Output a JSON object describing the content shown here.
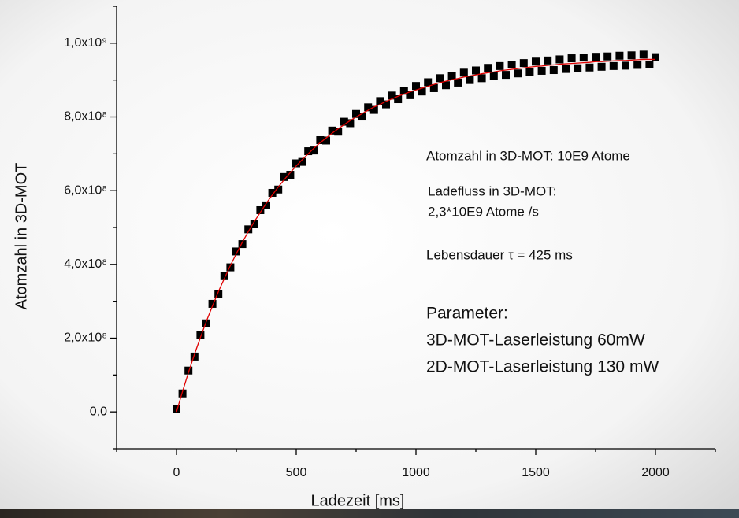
{
  "chart_data": {
    "type": "scatter",
    "xlabel": "Ladezeit [ms]",
    "ylabel": "Atomzahl in 3D-MOT",
    "x": [
      0,
      25,
      50,
      75,
      100,
      125,
      150,
      175,
      200,
      225,
      250,
      275,
      300,
      325,
      350,
      375,
      400,
      425,
      450,
      475,
      500,
      525,
      550,
      575,
      600,
      625,
      650,
      675,
      700,
      725,
      750,
      775,
      800,
      825,
      850,
      875,
      900,
      925,
      950,
      975,
      1000,
      1025,
      1050,
      1075,
      1100,
      1125,
      1150,
      1175,
      1200,
      1225,
      1250,
      1275,
      1300,
      1325,
      1350,
      1375,
      1400,
      1425,
      1450,
      1475,
      1500,
      1525,
      1550,
      1575,
      1600,
      1625,
      1650,
      1675,
      1700,
      1725,
      1750,
      1775,
      1800,
      1825,
      1850,
      1875,
      1900,
      1925,
      1950,
      1975,
      2000
    ],
    "series": [
      {
        "type": "scatter",
        "color": "#000000",
        "values": [
          8000000,
          50000000,
          112000000,
          150000000,
          208000000,
          240000000,
          293000000,
          320000000,
          368000000,
          392000000,
          435000000,
          455000000,
          495000000,
          510000000,
          547000000,
          560000000,
          594000000,
          603000000,
          637000000,
          643000000,
          674000000,
          678000000,
          707000000,
          709000000,
          737000000,
          736000000,
          763000000,
          760000000,
          787000000,
          783000000,
          808000000,
          801000000,
          826000000,
          819000000,
          843000000,
          834000000,
          858000000,
          848000000,
          871000000,
          859000000,
          884000000,
          869000000,
          894000000,
          878000000,
          905000000,
          886000000,
          912000000,
          893000000,
          920000000,
          900000000,
          926000000,
          905000000,
          933000000,
          910000000,
          938000000,
          914000000,
          942000000,
          918000000,
          946000000,
          922000000,
          950000000,
          925000000,
          953000000,
          927000000,
          956000000,
          930000000,
          959000000,
          932000000,
          961000000,
          934000000,
          963000000,
          936000000,
          964000000,
          938000000,
          966000000,
          939000000,
          967000000,
          941000000,
          969000000,
          942000000,
          962000000
        ]
      },
      {
        "type": "line",
        "color": "#e00000",
        "values": [
          0,
          55000000,
          107000000,
          156000000,
          202000000,
          246000000,
          287000000,
          326000000,
          362000000,
          397000000,
          429000000,
          460000000,
          489000000,
          516000000,
          541000000,
          566000000,
          588000000,
          610000000,
          630000000,
          649000000,
          667000000,
          684000000,
          700000000,
          716000000,
          730000000,
          743000000,
          756000000,
          768000000,
          779000000,
          790000000,
          800000000,
          809000000,
          818000000,
          827000000,
          834000000,
          842000000,
          849000000,
          856000000,
          862000000,
          868000000,
          873000000,
          878000000,
          883000000,
          888000000,
          893000000,
          897000000,
          901000000,
          904000000,
          908000000,
          911000000,
          914000000,
          917000000,
          920000000,
          922000000,
          925000000,
          927000000,
          929000000,
          931000000,
          933000000,
          935000000,
          937000000,
          938000000,
          940000000,
          941000000,
          943000000,
          944000000,
          945000000,
          946000000,
          947000000,
          948000000,
          950000000,
          950000000,
          951000000,
          952000000,
          953000000,
          953000000,
          954000000,
          955000000,
          956000000,
          956000000,
          956000000
        ]
      }
    ],
    "xlim": [
      -250,
      2250
    ],
    "xticks": [
      0,
      500,
      1000,
      1500,
      2000
    ],
    "xminorticks": [
      -250,
      250,
      750,
      1250,
      1750,
      2250
    ],
    "ylim": [
      -100000000,
      1100000000
    ],
    "yticks": [
      {
        "value": 0,
        "label": "0,0"
      },
      {
        "value": 200000000,
        "label": "2,0x10⁸"
      },
      {
        "value": 400000000,
        "label": "4,0x10⁸"
      },
      {
        "value": 600000000,
        "label": "6,0x10⁸"
      },
      {
        "value": 800000000,
        "label": "8,0x10⁸"
      },
      {
        "value": 1000000000,
        "label": "1,0x10⁹"
      }
    ],
    "yminorticks": [
      -100000000,
      100000000,
      300000000,
      500000000,
      700000000,
      900000000,
      1100000000
    ],
    "annotations": [
      "Atomzahl in 3D-MOT: 10E9 Atome",
      "Ladefluss in 3D-MOT:",
      "2,3*10E9 Atome /s",
      "Lebensdauer τ = 425 ms",
      "Parameter:",
      "3D-MOT-Laserleistung 60mW",
      "2D-MOT-Laserleistung 130 mW"
    ]
  }
}
